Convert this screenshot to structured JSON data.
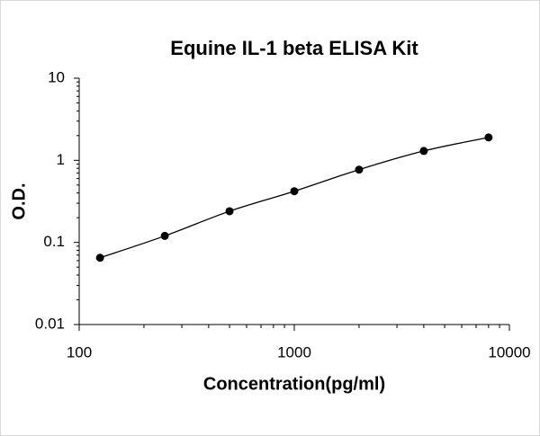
{
  "chart_data": {
    "type": "scatter",
    "title": "Equine IL-1 beta ELISA Kit",
    "x_label": "Concentration(pg/ml)",
    "y_label": "O.D.",
    "x": [
      125,
      250,
      500,
      1000,
      2000,
      4000,
      8000
    ],
    "values": [
      0.065,
      0.12,
      0.24,
      0.42,
      0.77,
      1.3,
      1.9
    ],
    "color": "#000000",
    "trendline": true,
    "xlim": [
      100,
      10000
    ],
    "xticks": [
      100,
      1000,
      10000
    ],
    "xscale": "log",
    "ylim": [
      0.01,
      10
    ],
    "yticks": [
      0.01,
      0.1,
      1,
      10
    ],
    "yscale": "log"
  }
}
